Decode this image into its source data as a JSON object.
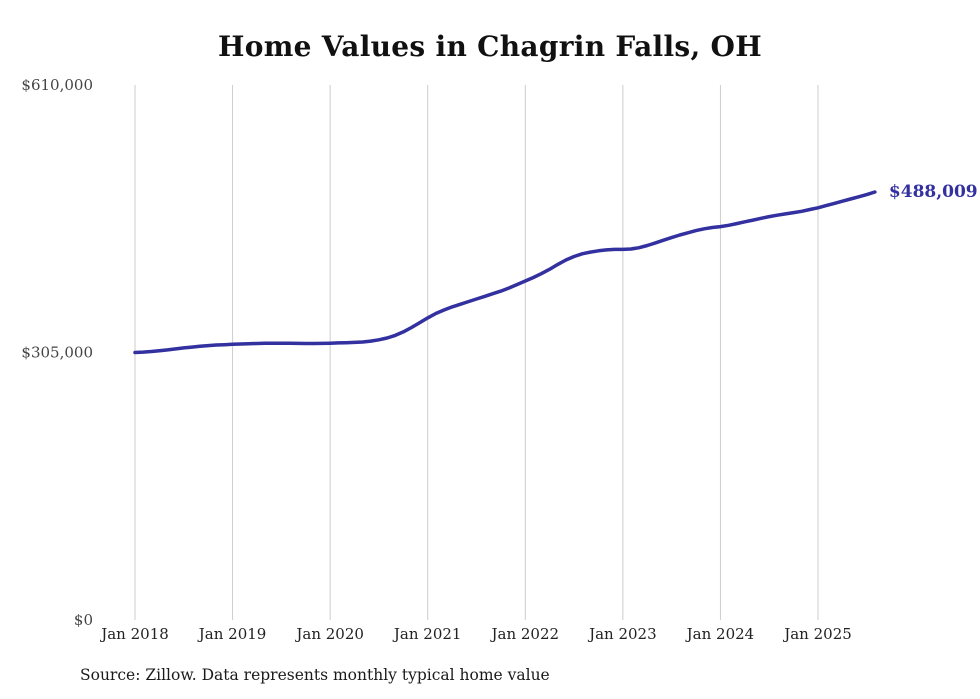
{
  "chart": {
    "title": "Home Values in Chagrin Falls, OH",
    "end_label": "$488,009",
    "source": "Source: Zillow. Data represents monthly typical home value",
    "line_color": "#33309F",
    "grid_color": "#CCCCCC",
    "tick_label_color": "#222222",
    "y_label_color": "#444444"
  },
  "chart_data": {
    "type": "line",
    "title": "Home Values in Chagrin Falls, OH",
    "series_name": "Typical home value",
    "x_start": "2018-01",
    "x_end": "2025-08",
    "frequency": "monthly",
    "values": [
      305000,
      305400,
      306100,
      307000,
      308000,
      309100,
      310200,
      311200,
      312100,
      312900,
      313500,
      313900,
      314300,
      314700,
      315000,
      315300,
      315500,
      315600,
      315600,
      315500,
      315400,
      315300,
      315300,
      315400,
      315600,
      315900,
      316200,
      316500,
      317000,
      318000,
      319500,
      321500,
      324500,
      328500,
      333500,
      339000,
      344500,
      349500,
      353500,
      357000,
      360000,
      363000,
      366000,
      369000,
      372000,
      375000,
      378500,
      382500,
      386500,
      390500,
      395000,
      400000,
      405500,
      410500,
      414500,
      417500,
      419500,
      421000,
      422000,
      422500,
      422500,
      423000,
      424500,
      427000,
      430000,
      433000,
      436000,
      439000,
      441500,
      444000,
      446000,
      447500,
      448500,
      450000,
      452000,
      454000,
      456000,
      458000,
      460000,
      461500,
      463000,
      464500,
      466000,
      468000,
      470000,
      472500,
      475000,
      477500,
      480000,
      482500,
      485000,
      488009
    ],
    "x_ticks": [
      {
        "label": "Jan 2018",
        "month_index": 0
      },
      {
        "label": "Jan 2019",
        "month_index": 12
      },
      {
        "label": "Jan 2020",
        "month_index": 24
      },
      {
        "label": "Jan 2021",
        "month_index": 36
      },
      {
        "label": "Jan 2022",
        "month_index": 48
      },
      {
        "label": "Jan 2023",
        "month_index": 60
      },
      {
        "label": "Jan 2024",
        "month_index": 72
      },
      {
        "label": "Jan 2025",
        "month_index": 84
      }
    ],
    "y_ticks": [
      {
        "label": "$610,000",
        "value": 610000
      },
      {
        "label": "$305,000",
        "value": 305000
      },
      {
        "label": "$0",
        "value": 0
      }
    ],
    "ylim": [
      0,
      610000
    ],
    "grid": "vertical-only",
    "legend": "none",
    "annotation": {
      "text": "$488,009",
      "value": 488009,
      "position": "line-end"
    }
  }
}
